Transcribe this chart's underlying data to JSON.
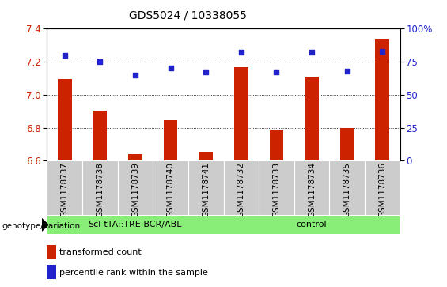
{
  "title": "GDS5024 / 10338055",
  "samples": [
    "GSM1178737",
    "GSM1178738",
    "GSM1178739",
    "GSM1178740",
    "GSM1178741",
    "GSM1178732",
    "GSM1178733",
    "GSM1178734",
    "GSM1178735",
    "GSM1178736"
  ],
  "bar_values": [
    7.095,
    6.905,
    6.64,
    6.845,
    6.655,
    7.165,
    6.79,
    7.11,
    6.8,
    7.34
  ],
  "dot_values": [
    80,
    75,
    65,
    70,
    67,
    82,
    67,
    82,
    68,
    83
  ],
  "ylim_left": [
    6.6,
    7.4
  ],
  "ylim_right": [
    0,
    100
  ],
  "yticks_left": [
    6.6,
    6.8,
    7.0,
    7.2,
    7.4
  ],
  "yticks_right": [
    0,
    25,
    50,
    75,
    100
  ],
  "ytick_labels_right": [
    "0",
    "25",
    "50",
    "75",
    "100%"
  ],
  "bar_color": "#cc2200",
  "dot_color": "#2222cc",
  "group1_label": "Scl-tTA::TRE-BCR/ABL",
  "group2_label": "control",
  "group1_color": "#88ee77",
  "group2_color": "#88ee77",
  "group1_indices": [
    0,
    1,
    2,
    3,
    4
  ],
  "group2_indices": [
    5,
    6,
    7,
    8,
    9
  ],
  "legend_bar_label": "transformed count",
  "legend_dot_label": "percentile rank within the sample",
  "genotype_label": "genotype/variation",
  "hgrid_color": "black",
  "bg_color": "#ffffff",
  "tick_bg_color": "#cccccc",
  "yticklabel_color_left": "#cc2200",
  "yticklabel_color_right": "#2222cc",
  "bar_width": 0.4,
  "title_fontsize": 10,
  "axis_fontsize": 8,
  "label_fontsize": 7.5
}
